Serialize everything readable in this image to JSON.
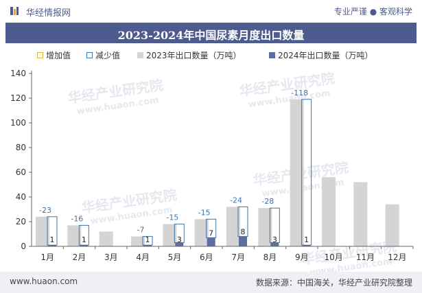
{
  "header": {
    "brand": "华经情报网",
    "slogan": "专业严谨 ● 客观科学"
  },
  "footer": {
    "website": "www.huaon.com",
    "source": "数据来源：中国海关，华经产业研究院整理"
  },
  "watermark": {
    "text": "华经产业研究院",
    "url": "www.huaon.com"
  },
  "colors": {
    "title_band": "#4d5b8f",
    "series_2023": "#d4d4d4",
    "series_2024": "#5d6d9e",
    "increase": "#d9b33a",
    "decrease": "#3b73a8"
  },
  "chart_data": {
    "type": "bar",
    "title": "2023-2024年中国尿素月度出口数量",
    "categories": [
      "1月",
      "2月",
      "3月",
      "4月",
      "5月",
      "6月",
      "7月",
      "8月",
      "9月",
      "10月",
      "11月",
      "12月"
    ],
    "series": [
      {
        "name": "2023年出口数量（万吨）",
        "values": [
          24,
          17,
          12,
          8,
          18,
          22,
          32,
          31,
          119,
          56,
          52,
          34
        ]
      },
      {
        "name": "2024年出口数量（万吨）",
        "values": [
          1,
          1,
          null,
          1,
          3,
          7,
          8,
          3,
          1,
          null,
          null,
          null
        ]
      }
    ],
    "change": {
      "increase_label": "增加值",
      "decrease_label": "减少值",
      "values": [
        -23,
        -16,
        null,
        -7,
        -15,
        -15,
        -24,
        -28,
        -118,
        null,
        null,
        null
      ]
    },
    "data_labels_2024": [
      "1",
      "1",
      "",
      "1",
      "3",
      "7",
      "8",
      "3",
      "1",
      "",
      "",
      ""
    ],
    "ylim": [
      0,
      140
    ],
    "yticks": [
      0,
      20,
      40,
      60,
      80,
      100,
      120,
      140
    ],
    "legend_position": "top",
    "grid": false
  }
}
